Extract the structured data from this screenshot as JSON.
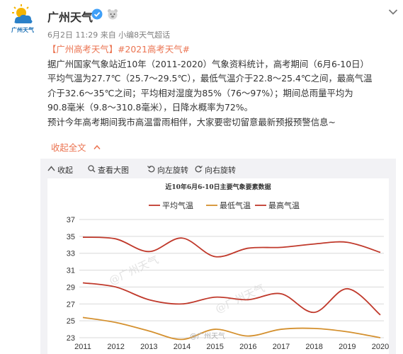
{
  "post": {
    "account_name": "广州天气",
    "avatar_label": "广州天气",
    "meta": "6月2日 11:29 来自 小编8天气超话",
    "line1_link": "【广州高考天气】",
    "line1_hashtag": "#2021高考天气#",
    "line2": "据广州国家气象站近10年（2011-2020）气象资料统计，高考期间（6月6-10日）",
    "line3": "平均气温为27.7℃（25.7～29.5℃），最低气温介于22.8～25.4℃之间，最高气温",
    "line4": "介于32.6～35℃之间；平均相对湿度为85%（76～97%）；期间总雨量平均为",
    "line5": "90.8毫米（9.8～310.8毫米），日降水概率为72%。",
    "line6": "预计今年高考期间我市高温雷雨相伴，大家要密切留意最新预报预警信息~",
    "collapse": "收起全文"
  },
  "toolbar": {
    "collapse": "收起",
    "view_large": "查看大图",
    "rotate_left": "向左旋转",
    "rotate_right": "向右旋转"
  },
  "watermark": {
    "bottom": "@广州天气"
  },
  "chart_data": {
    "type": "line",
    "title": "近10年6月6-10日主要气象要素数据",
    "x": [
      "2011",
      "2012",
      "2013",
      "2014",
      "2015",
      "2016",
      "2017",
      "2018",
      "2019",
      "2020"
    ],
    "ylim": [
      23,
      37
    ],
    "yticks": [
      23,
      25,
      27,
      29,
      31,
      33,
      35,
      37
    ],
    "legend_position": "top",
    "grid": true,
    "series": [
      {
        "name": "平均气温",
        "color": "#c0392b",
        "values": [
          29.5,
          29.0,
          27.5,
          27.0,
          27.8,
          27.5,
          28.2,
          26.0,
          28.8,
          25.7
        ]
      },
      {
        "name": "最低气温",
        "color": "#d4902e",
        "values": [
          25.4,
          24.8,
          23.8,
          22.8,
          24.0,
          23.2,
          24.0,
          24.1,
          23.7,
          23.0
        ]
      },
      {
        "name": "最高气温",
        "color": "#c0392b",
        "values": [
          34.9,
          34.7,
          33.2,
          34.8,
          32.6,
          33.6,
          33.7,
          34.1,
          34.3,
          33.1
        ]
      }
    ]
  }
}
